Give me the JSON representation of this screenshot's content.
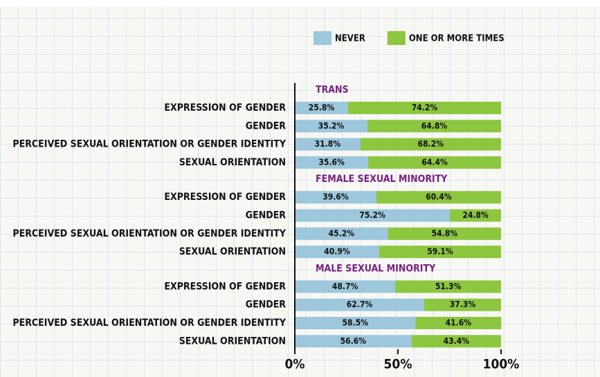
{
  "chart_data": {
    "type": "stacked_bar_horizontal",
    "groups": [
      "TRANS",
      "FEMALE SEXUAL MINORITY",
      "MALE SEXUAL MINORITY"
    ],
    "categories": [
      "EXPRESSION OF GENDER",
      "GENDER",
      "PERCEIVED SEXUAL ORIENTATION OR GENDER IDENTITY",
      "SEXUAL ORIENTATION",
      "EXPRESSION OF GENDER",
      "GENDER",
      "PERCEIVED SEXUAL ORIENTATION OR GENDER IDENTITY",
      "SEXUAL ORIENTATION",
      "EXPRESSION OF GENDER",
      "GENDER",
      "PERCEIVED SEXUAL ORIENTATION OR GENDER IDENTITY",
      "SEXUAL ORIENTATION"
    ],
    "series": [
      {
        "name": "NEVER",
        "color": "#9cc7dc",
        "values": [
          25.8,
          35.2,
          31.8,
          35.6,
          39.6,
          75.2,
          45.2,
          40.9,
          48.7,
          62.7,
          58.5,
          56.6
        ],
        "value_labels": [
          "25.8%",
          "35.2%",
          "31.8%",
          "35.6%",
          "39.6%",
          "75.2%",
          "45.2%",
          "40.9%",
          "48.7%",
          "62.7%",
          "58.5%",
          "56.6%"
        ]
      },
      {
        "name": "ONE OR MORE TIMES",
        "color": "#8dc63f",
        "values": [
          74.2,
          64.8,
          68.2,
          64.4,
          60.4,
          24.8,
          54.8,
          59.1,
          51.3,
          37.3,
          41.6,
          43.4
        ],
        "value_labels": [
          "74.2%",
          "64.8%",
          "68.2%",
          "64.4%",
          "60.4%",
          "24.8%",
          "54.8%",
          "59.1%",
          "51.3%",
          "37.3%",
          "41.6%",
          "43.4%"
        ]
      }
    ],
    "xlim": [
      0,
      100
    ],
    "xticks": [
      {
        "value": 0,
        "label": "0%"
      },
      {
        "value": 50,
        "label": "50%"
      },
      {
        "value": 100,
        "label": "100%"
      }
    ],
    "legend": "top"
  }
}
